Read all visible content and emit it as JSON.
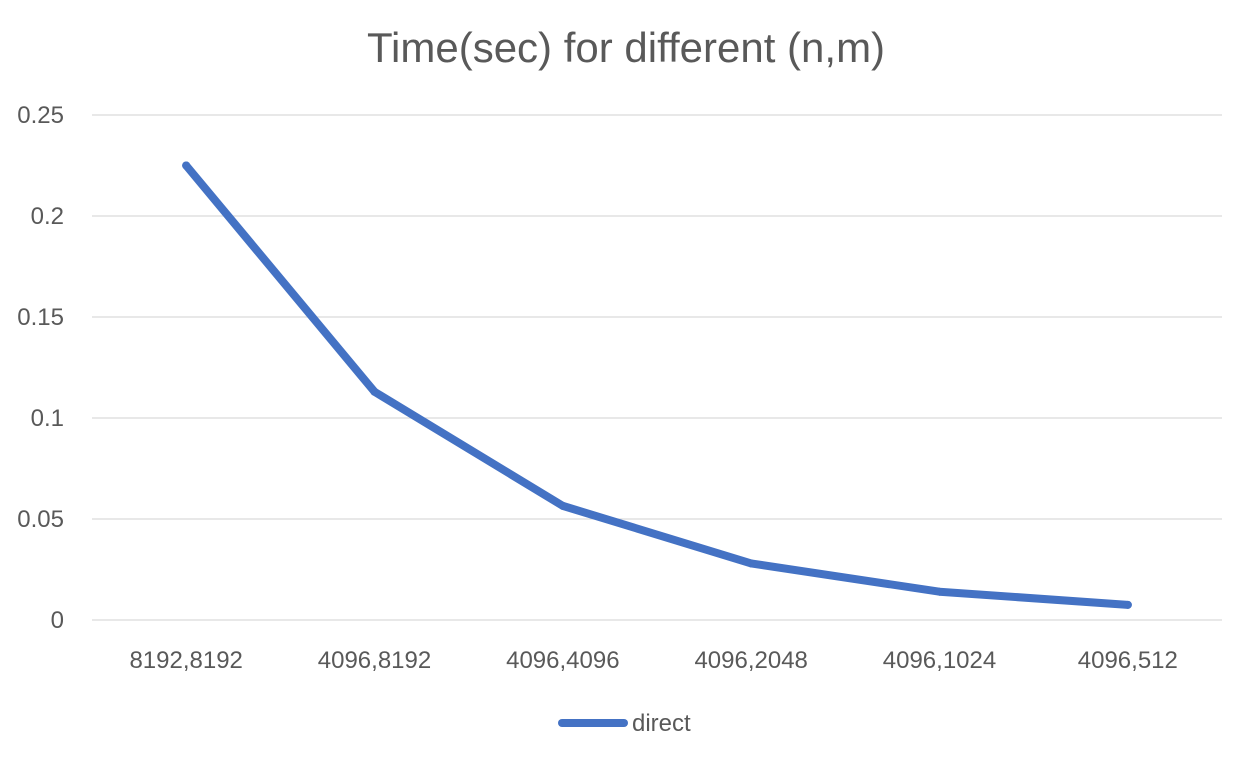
{
  "chart_data": {
    "type": "line",
    "title": "Time(sec) for different (n,m)",
    "xlabel": "",
    "ylabel": "",
    "categories": [
      "8192,8192",
      "4096,8192",
      "4096,4096",
      "4096,2048",
      "4096,1024",
      "4096,512"
    ],
    "series": [
      {
        "name": "direct",
        "values": [
          0.225,
          0.113,
          0.0565,
          0.028,
          0.014,
          0.0075
        ],
        "color": "#4472C4"
      }
    ],
    "ylim": [
      0,
      0.25
    ],
    "yticks": [
      "0",
      "0.05",
      "0.1",
      "0.15",
      "0.2",
      "0.25"
    ],
    "grid": true,
    "legend_position": "bottom"
  }
}
